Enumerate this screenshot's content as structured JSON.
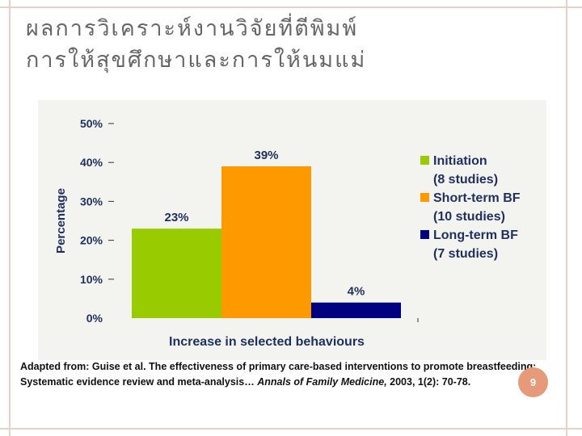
{
  "slide": {
    "title": "ผลการวิเคราะห์งานวิจัยที่ตีพิมพ์\nการให้สุขศึกษาและการให้นมแม่",
    "page_number": "9",
    "accent_color": "#e69a7a"
  },
  "caption": {
    "prefix": "Adapted from: Guise et al. The effectiveness of primary care-based interventions to promote breastfeeding: Systematic evidence review and meta-analysis…",
    "journal": "Annals of Family Medicine,",
    "suffix": "2003, 1(2): 70-78."
  },
  "chart_data": {
    "type": "bar",
    "title": "",
    "xlabel": "Increase in selected behaviours",
    "ylabel": "Percentage",
    "ylim": [
      0,
      50
    ],
    "yticks": [
      "0%",
      "10%",
      "20%",
      "30%",
      "40%",
      "50%"
    ],
    "legend_position": "right",
    "grid": false,
    "series": [
      {
        "name": "Initiation (8 studies)",
        "legend_lines": [
          "Initiation",
          "(8 studies)"
        ],
        "value": 23,
        "label": "23%",
        "color": "#99cc00"
      },
      {
        "name": "Short-term BF (10 studies)",
        "legend_lines": [
          "Short-term BF",
          "(10 studies)"
        ],
        "value": 39,
        "label": "39%",
        "color": "#ff9900"
      },
      {
        "name": "Long-term BF (7 studies)",
        "legend_lines": [
          "Long-term BF",
          "(7 studies)"
        ],
        "value": 4,
        "label": "4%",
        "color": "#000080"
      }
    ]
  }
}
